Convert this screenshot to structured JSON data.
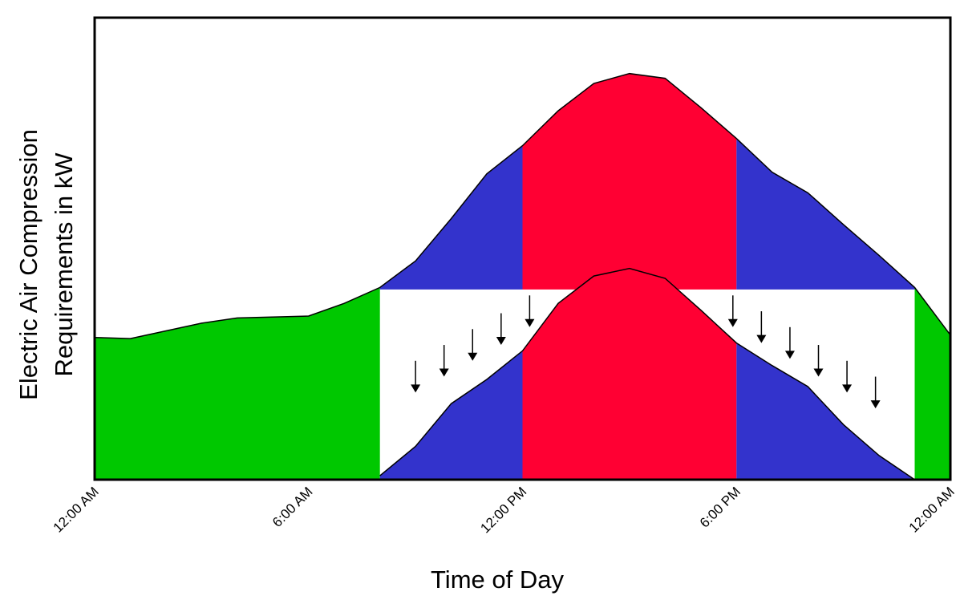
{
  "chart_data": {
    "type": "area",
    "title": "",
    "xlabel": "Time of Day",
    "ylabel_lines": [
      "Electric Air Compression",
      "Requirements in kW"
    ],
    "x_ticks": [
      {
        "hour": 0,
        "label": "12:00 AM"
      },
      {
        "hour": 6,
        "label": "6:00 AM"
      },
      {
        "hour": 12,
        "label": "12:00 PM"
      },
      {
        "hour": 18,
        "label": "6:00 PM"
      },
      {
        "hour": 24,
        "label": "12:00 AM"
      }
    ],
    "xlim": [
      0,
      24
    ],
    "ylim": [
      0,
      100
    ],
    "grid": false,
    "legend": "none",
    "colors": {
      "base": "#00c800",
      "shoulder": "#3333cc",
      "peak": "#ff0033",
      "outline": "#000000",
      "frame": "#000000"
    },
    "original_profile": {
      "hours": [
        0,
        1,
        3,
        4,
        6,
        7,
        8,
        9,
        10,
        11,
        12,
        13,
        14,
        15,
        16,
        17,
        18,
        19,
        20,
        21,
        22,
        23,
        24
      ],
      "values": [
        35.9,
        35.6,
        39.5,
        40.8,
        41.3,
        44.5,
        48.5,
        55.2,
        65.9,
        77.2,
        84.3,
        93.1,
        100,
        102.5,
        101.3,
        93.9,
        86.1,
        77.6,
        72.4,
        64.4,
        56.6,
        48.5,
        36.5
      ]
    },
    "shifted_profile": {
      "hours": [
        8,
        9,
        10,
        11,
        12,
        13,
        14,
        15,
        16,
        17,
        18,
        19,
        20,
        21,
        22,
        23
      ],
      "values": [
        1,
        8.4,
        19.2,
        25.3,
        32.5,
        44.5,
        51.4,
        53.3,
        50.8,
        42.8,
        34.5,
        28.8,
        23.5,
        13.9,
        6.1,
        0
      ]
    },
    "plateau_level": 48,
    "shifting_window_hours": [
      8,
      23
    ],
    "peak_window_hours": [
      12,
      18
    ],
    "shift_arrows": [
      {
        "hour": 9,
        "from": 30,
        "to": 22
      },
      {
        "hour": 9.8,
        "from": 34,
        "to": 26
      },
      {
        "hour": 10.6,
        "from": 38,
        "to": 30
      },
      {
        "hour": 11.4,
        "from": 42,
        "to": 34
      },
      {
        "hour": 12.2,
        "from": 46.5,
        "to": 38.5
      },
      {
        "hour": 17.9,
        "from": 46.5,
        "to": 38.5
      },
      {
        "hour": 18.7,
        "from": 42.5,
        "to": 34.5
      },
      {
        "hour": 19.5,
        "from": 38.5,
        "to": 30.5
      },
      {
        "hour": 20.3,
        "from": 34,
        "to": 26
      },
      {
        "hour": 21.1,
        "from": 30,
        "to": 22
      },
      {
        "hour": 21.9,
        "from": 26,
        "to": 18
      }
    ]
  }
}
